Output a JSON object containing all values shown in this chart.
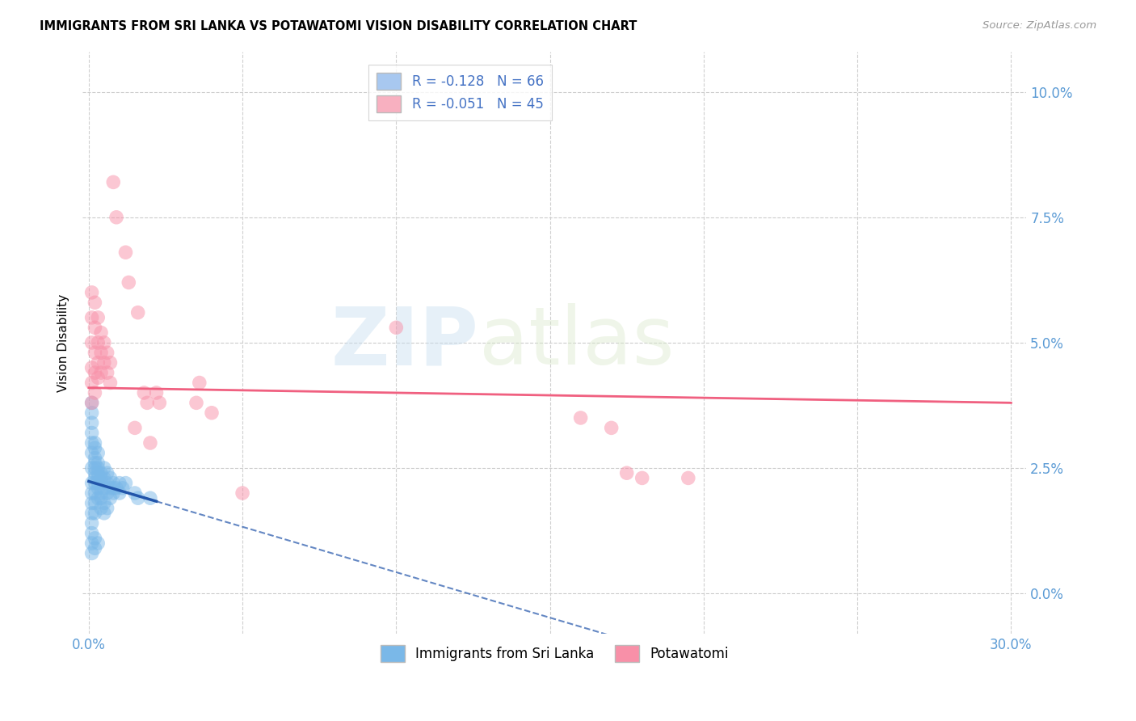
{
  "title": "IMMIGRANTS FROM SRI LANKA VS POTAWATOMI VISION DISABILITY CORRELATION CHART",
  "source": "Source: ZipAtlas.com",
  "ylabel": "Vision Disability",
  "ytick_values": [
    0.0,
    0.025,
    0.05,
    0.075,
    0.1
  ],
  "xtick_values": [
    0.0,
    0.05,
    0.1,
    0.15,
    0.2,
    0.25,
    0.3
  ],
  "xlim": [
    -0.002,
    0.305
  ],
  "ylim": [
    -0.008,
    0.108
  ],
  "legend_entry_1": "R = -0.128   N = 66",
  "legend_entry_2": "R = -0.051   N = 45",
  "legend_color_1": "#a8c8f0",
  "legend_color_2": "#f8b0c0",
  "sri_lanka_color": "#7ab8e8",
  "potawatomi_color": "#f890a8",
  "sri_lanka_line_color": "#2255aa",
  "potawatomi_line_color": "#f06080",
  "watermark_zip": "ZIP",
  "watermark_atlas": "atlas",
  "sri_lanka_R": -0.128,
  "potawatomi_R": -0.051,
  "sri_lanka_points": [
    [
      0.001,
      0.028
    ],
    [
      0.001,
      0.025
    ],
    [
      0.001,
      0.022
    ],
    [
      0.001,
      0.02
    ],
    [
      0.001,
      0.018
    ],
    [
      0.001,
      0.016
    ],
    [
      0.001,
      0.014
    ],
    [
      0.001,
      0.012
    ],
    [
      0.001,
      0.03
    ],
    [
      0.001,
      0.032
    ],
    [
      0.002,
      0.026
    ],
    [
      0.002,
      0.024
    ],
    [
      0.002,
      0.022
    ],
    [
      0.002,
      0.02
    ],
    [
      0.002,
      0.018
    ],
    [
      0.002,
      0.016
    ],
    [
      0.002,
      0.025
    ],
    [
      0.002,
      0.023
    ],
    [
      0.003,
      0.025
    ],
    [
      0.003,
      0.023
    ],
    [
      0.003,
      0.021
    ],
    [
      0.003,
      0.019
    ],
    [
      0.003,
      0.022
    ],
    [
      0.003,
      0.024
    ],
    [
      0.004,
      0.024
    ],
    [
      0.004,
      0.022
    ],
    [
      0.004,
      0.02
    ],
    [
      0.004,
      0.023
    ],
    [
      0.005,
      0.023
    ],
    [
      0.005,
      0.021
    ],
    [
      0.005,
      0.025
    ],
    [
      0.006,
      0.022
    ],
    [
      0.006,
      0.024
    ],
    [
      0.007,
      0.021
    ],
    [
      0.007,
      0.023
    ],
    [
      0.008,
      0.022
    ],
    [
      0.008,
      0.02
    ],
    [
      0.009,
      0.021
    ],
    [
      0.01,
      0.022
    ],
    [
      0.01,
      0.02
    ],
    [
      0.011,
      0.021
    ],
    [
      0.012,
      0.022
    ],
    [
      0.001,
      0.008
    ],
    [
      0.001,
      0.01
    ],
    [
      0.002,
      0.009
    ],
    [
      0.002,
      0.011
    ],
    [
      0.003,
      0.01
    ],
    [
      0.001,
      0.034
    ],
    [
      0.002,
      0.03
    ],
    [
      0.015,
      0.02
    ],
    [
      0.016,
      0.019
    ],
    [
      0.02,
      0.019
    ],
    [
      0.001,
      0.038
    ],
    [
      0.001,
      0.036
    ],
    [
      0.002,
      0.029
    ],
    [
      0.002,
      0.027
    ],
    [
      0.003,
      0.026
    ],
    [
      0.003,
      0.028
    ],
    [
      0.004,
      0.019
    ],
    [
      0.004,
      0.017
    ],
    [
      0.005,
      0.018
    ],
    [
      0.005,
      0.016
    ],
    [
      0.006,
      0.02
    ],
    [
      0.006,
      0.017
    ],
    [
      0.008,
      0.021
    ],
    [
      0.007,
      0.019
    ]
  ],
  "potawatomi_points": [
    [
      0.001,
      0.06
    ],
    [
      0.001,
      0.055
    ],
    [
      0.001,
      0.05
    ],
    [
      0.001,
      0.045
    ],
    [
      0.001,
      0.042
    ],
    [
      0.001,
      0.038
    ],
    [
      0.002,
      0.058
    ],
    [
      0.002,
      0.053
    ],
    [
      0.002,
      0.048
    ],
    [
      0.002,
      0.044
    ],
    [
      0.002,
      0.04
    ],
    [
      0.003,
      0.055
    ],
    [
      0.003,
      0.05
    ],
    [
      0.003,
      0.046
    ],
    [
      0.003,
      0.043
    ],
    [
      0.004,
      0.052
    ],
    [
      0.004,
      0.048
    ],
    [
      0.004,
      0.044
    ],
    [
      0.005,
      0.05
    ],
    [
      0.005,
      0.046
    ],
    [
      0.006,
      0.048
    ],
    [
      0.006,
      0.044
    ],
    [
      0.007,
      0.046
    ],
    [
      0.007,
      0.042
    ],
    [
      0.008,
      0.082
    ],
    [
      0.009,
      0.075
    ],
    [
      0.012,
      0.068
    ],
    [
      0.013,
      0.062
    ],
    [
      0.016,
      0.056
    ],
    [
      0.018,
      0.04
    ],
    [
      0.019,
      0.038
    ],
    [
      0.022,
      0.04
    ],
    [
      0.023,
      0.038
    ],
    [
      0.035,
      0.038
    ],
    [
      0.036,
      0.042
    ],
    [
      0.04,
      0.036
    ],
    [
      0.1,
      0.053
    ],
    [
      0.16,
      0.035
    ],
    [
      0.17,
      0.033
    ],
    [
      0.175,
      0.024
    ],
    [
      0.18,
      0.023
    ],
    [
      0.195,
      0.023
    ],
    [
      0.015,
      0.033
    ],
    [
      0.02,
      0.03
    ],
    [
      0.05,
      0.02
    ]
  ]
}
